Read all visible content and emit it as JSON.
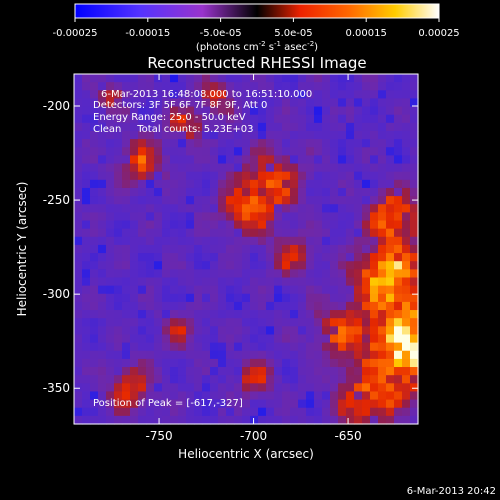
{
  "chart_data": {
    "type": "heatmap",
    "title": "Reconstructed RHESSI Image",
    "xlabel": "Heliocentric X (arcsec)",
    "ylabel": "Heliocentric Y (arcsec)",
    "xlim": [
      -795,
      -613
    ],
    "ylim": [
      -369,
      -183
    ],
    "x_ticks": [
      {
        "v": -750,
        "label": "-750"
      },
      {
        "v": -700,
        "label": "-700"
      },
      {
        "v": -650,
        "label": "-650"
      }
    ],
    "y_ticks": [
      {
        "v": -200,
        "label": "-200"
      },
      {
        "v": -250,
        "label": "-250"
      },
      {
        "v": -300,
        "label": "-300"
      },
      {
        "v": -350,
        "label": "-350"
      }
    ],
    "colorbar": {
      "range": [
        -0.00025,
        0.00025
      ],
      "tick_values": [
        -0.00025,
        -0.00015,
        -5e-05,
        5e-05,
        0.00015,
        0.00025
      ],
      "tick_labels": [
        "-0.00025",
        "-0.00015",
        "-5.0e-05",
        "5.0e-05",
        "0.00015",
        "0.00025"
      ],
      "unit_main": "(photons cm",
      "unit_exp1": "-2",
      "unit_mid": " s",
      "unit_exp2": "-1",
      "unit_tail": " asec",
      "unit_exp3": "-2",
      "unit_close": ")",
      "colors": [
        "#0000ff",
        "#5533ff",
        "#9933cc",
        "#ee2200",
        "#ff6600",
        "#ffcc00",
        "#ffffff"
      ]
    },
    "annotations": [
      "6-Mar-2013 16:48:08.000 to 16:51:10.000",
      "Detectors: 3F 5F 6F 7F 8F 9F, Att 0",
      "Energy Range: 25.0 - 50.0 keV",
      "Clean     Total counts: 5.23E+03"
    ],
    "peak_label": "Position of Peak = [-617,-327]",
    "peak": [
      -617,
      -327
    ],
    "hotspots": [
      {
        "x": -616,
        "y": -327,
        "w": 1.0,
        "r": 22
      },
      {
        "x": -628,
        "y": -290,
        "w": 0.8,
        "r": 18
      },
      {
        "x": -625,
        "y": -258,
        "w": 0.6,
        "r": 14
      },
      {
        "x": -640,
        "y": -355,
        "w": 0.55,
        "r": 16
      },
      {
        "x": -655,
        "y": -320,
        "w": 0.45,
        "r": 14
      },
      {
        "x": -690,
        "y": -240,
        "w": 0.5,
        "r": 16
      },
      {
        "x": -705,
        "y": -255,
        "w": 0.45,
        "r": 14
      },
      {
        "x": -760,
        "y": -230,
        "w": 0.5,
        "r": 12
      },
      {
        "x": -735,
        "y": -210,
        "w": 0.4,
        "r": 10
      },
      {
        "x": -720,
        "y": -195,
        "w": 0.4,
        "r": 9
      },
      {
        "x": -775,
        "y": -195,
        "w": 0.35,
        "r": 8
      },
      {
        "x": -765,
        "y": -350,
        "w": 0.45,
        "r": 12
      },
      {
        "x": -700,
        "y": -345,
        "w": 0.4,
        "r": 10
      },
      {
        "x": -680,
        "y": -280,
        "w": 0.35,
        "r": 12
      },
      {
        "x": -738,
        "y": -320,
        "w": 0.3,
        "r": 10
      }
    ]
  },
  "footer_date": "6-Mar-2013 20:42"
}
